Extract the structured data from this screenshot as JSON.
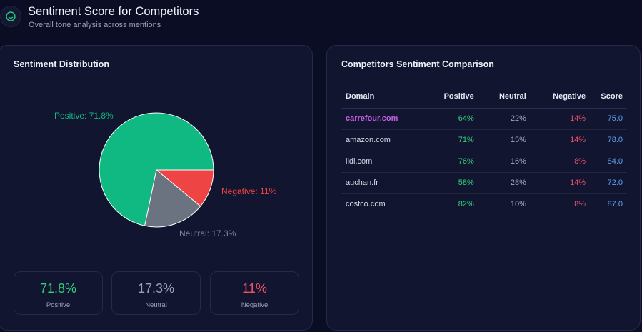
{
  "header": {
    "title": "Sentiment Score for Competitors",
    "subtitle": "Overall tone analysis across mentions",
    "icon": "smile-icon"
  },
  "distribution": {
    "title": "Sentiment Distribution",
    "pie_labels": {
      "positive": "Positive: 71.8%",
      "negative": "Negative: 11%",
      "neutral": "Neutral: 17.3%"
    },
    "stats": [
      {
        "value": "71.8%",
        "label": "Positive",
        "color": "#2fd07a"
      },
      {
        "value": "17.3%",
        "label": "Neutral",
        "color": "#9aa0b8"
      },
      {
        "value": "11%",
        "label": "Negative",
        "color": "#f0506a"
      }
    ]
  },
  "chart_data": {
    "type": "pie",
    "categories": [
      "Positive",
      "Negative",
      "Neutral"
    ],
    "values": [
      71.8,
      11,
      17.3
    ],
    "colors": [
      "#10b981",
      "#ef4444",
      "#6b7280"
    ]
  },
  "comparison": {
    "title": "Competitors Sentiment Comparison",
    "columns": [
      "Domain",
      "Positive",
      "Neutral",
      "Negative",
      "Score"
    ],
    "rows": [
      {
        "domain": "carrefour.com",
        "positive": "64%",
        "neutral": "22%",
        "negative": "14%",
        "score": "75.0"
      },
      {
        "domain": "amazon.com",
        "positive": "71%",
        "neutral": "15%",
        "negative": "14%",
        "score": "78.0"
      },
      {
        "domain": "lidl.com",
        "positive": "76%",
        "neutral": "16%",
        "negative": "8%",
        "score": "84.0"
      },
      {
        "domain": "auchan.fr",
        "positive": "58%",
        "neutral": "28%",
        "negative": "14%",
        "score": "72.0"
      },
      {
        "domain": "costco.com",
        "positive": "82%",
        "neutral": "10%",
        "negative": "8%",
        "score": "87.0"
      }
    ]
  },
  "colors": {
    "background": "#0b0d24",
    "card": "#12152f",
    "positive": "#2fd07a",
    "negative": "#f0506a",
    "neutral": "#9aa0b8",
    "score": "#5aa2f5",
    "highlight_domain": "#c15fe3"
  }
}
